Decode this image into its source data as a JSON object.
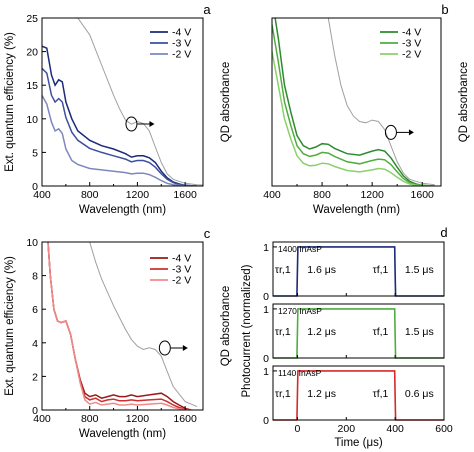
{
  "chart_data": [
    {
      "id": "a",
      "type": "line",
      "panel_label": "a",
      "xlabel": "Wavelength (nm)",
      "ylabel": "Ext. quantum efficiency (%)",
      "ylabel_right": "QD absorbance",
      "xlim": [
        400,
        1750
      ],
      "ylim": [
        0,
        25
      ],
      "xticks": [
        "400",
        "800",
        "1200",
        "1600"
      ],
      "yticks": [
        "0",
        "5",
        "10",
        "15",
        "20",
        "25"
      ],
      "legend": [
        "-4 V",
        "-3 V",
        "-2 V"
      ],
      "colors": [
        "#1b2a7a",
        "#3d4fa0",
        "#7d88bd"
      ],
      "absorbance_color": "#a0a0a0",
      "series": [
        {
          "name": "-4 V",
          "x": [
            400,
            440,
            480,
            510,
            540,
            570,
            600,
            650,
            700,
            800,
            900,
            1000,
            1100,
            1150,
            1200,
            1250,
            1300,
            1350,
            1400,
            1450,
            1500,
            1550,
            1600,
            1650,
            1700
          ],
          "y": [
            20.8,
            20.5,
            16.5,
            15,
            15.8,
            15.5,
            12.5,
            10,
            8.2,
            6.8,
            6,
            5.5,
            4.8,
            4.3,
            4.5,
            4.5,
            4.2,
            3.5,
            2.2,
            1.2,
            0.6,
            0.3,
            0.1,
            0.05,
            0
          ]
        },
        {
          "name": "-3 V",
          "x": [
            400,
            440,
            480,
            510,
            540,
            570,
            600,
            650,
            700,
            800,
            900,
            1000,
            1100,
            1150,
            1200,
            1250,
            1300,
            1350,
            1400,
            1450,
            1500,
            1550,
            1600,
            1650,
            1700
          ],
          "y": [
            17.5,
            16.8,
            13.5,
            12.5,
            13,
            12.5,
            10.2,
            8,
            6.8,
            5.6,
            5,
            4.5,
            4,
            3.6,
            3.8,
            3.8,
            3.5,
            2.8,
            1.8,
            1,
            0.5,
            0.2,
            0.08,
            0.03,
            0
          ]
        },
        {
          "name": "-2 V",
          "x": [
            400,
            440,
            480,
            510,
            540,
            570,
            600,
            650,
            700,
            800,
            900,
            1000,
            1100,
            1150,
            1200,
            1250,
            1300,
            1350,
            1400,
            1450,
            1500,
            1550,
            1600,
            1650,
            1700
          ],
          "y": [
            13.5,
            12.2,
            9.5,
            8.2,
            8.5,
            7.8,
            5.5,
            3.8,
            3.2,
            2.6,
            2.4,
            2.2,
            2,
            1.8,
            1.9,
            1.9,
            1.7,
            1.3,
            0.8,
            0.4,
            0.2,
            0.1,
            0.05,
            0.02,
            0
          ]
        },
        {
          "name": "QD absorbance",
          "x": [
            700,
            800,
            900,
            1000,
            1050,
            1100,
            1150,
            1200,
            1250,
            1300,
            1350,
            1400,
            1450,
            1500,
            1600,
            1700,
            1750
          ],
          "y": [
            25,
            22.5,
            18,
            13.5,
            11.5,
            9.8,
            9.2,
            9.6,
            9.3,
            8.2,
            5.8,
            3.5,
            1.8,
            1,
            0.4,
            0.2,
            0.15
          ]
        }
      ]
    },
    {
      "id": "b",
      "type": "line",
      "panel_label": "b",
      "xlabel": "Wavelength (nm)",
      "ylabel_right": "QD absorbance",
      "xlim": [
        400,
        1750
      ],
      "ylim": [
        0,
        25
      ],
      "xticks": [
        "400",
        "800",
        "1200",
        "1600"
      ],
      "legend": [
        "-4 V",
        "-3 V",
        "-2 V"
      ],
      "colors": [
        "#2e8a2e",
        "#4fad3f",
        "#8bd06a"
      ],
      "absorbance_color": "#a0a0a0",
      "series": [
        {
          "name": "-4 V",
          "x": [
            400,
            450,
            500,
            550,
            600,
            650,
            700,
            750,
            800,
            850,
            900,
            1000,
            1100,
            1200,
            1250,
            1300,
            1350,
            1400,
            1450,
            1500,
            1550,
            1600,
            1650,
            1700
          ],
          "y": [
            28,
            22,
            15,
            11,
            7.5,
            6,
            5.5,
            5.8,
            6.3,
            6.2,
            5.6,
            4.8,
            4.6,
            5.2,
            5.4,
            5.2,
            4.2,
            2.8,
            1.5,
            0.7,
            0.3,
            0.1,
            0.05,
            0
          ]
        },
        {
          "name": "-3 V",
          "x": [
            400,
            450,
            500,
            550,
            600,
            650,
            700,
            750,
            800,
            850,
            900,
            1000,
            1100,
            1200,
            1250,
            1300,
            1350,
            1400,
            1450,
            1500,
            1550,
            1600,
            1650,
            1700
          ],
          "y": [
            24,
            18.5,
            12.5,
            9,
            6,
            4.8,
            4.4,
            4.6,
            5,
            4.9,
            4.4,
            3.6,
            3.3,
            3.8,
            4,
            3.9,
            3.2,
            2.1,
            1.1,
            0.5,
            0.2,
            0.08,
            0.03,
            0
          ]
        },
        {
          "name": "-2 V",
          "x": [
            400,
            450,
            500,
            550,
            600,
            650,
            700,
            750,
            800,
            850,
            900,
            1000,
            1100,
            1200,
            1250,
            1300,
            1350,
            1400,
            1450,
            1500,
            1550,
            1600,
            1650,
            1700
          ],
          "y": [
            20,
            15,
            10,
            7,
            4.5,
            3.4,
            3,
            3.1,
            3.4,
            3.3,
            2.9,
            2.3,
            2.1,
            2.4,
            2.6,
            2.5,
            2,
            1.3,
            0.7,
            0.3,
            0.12,
            0.05,
            0.02,
            0
          ]
        },
        {
          "name": "QD absorbance",
          "x": [
            850,
            900,
            950,
            1000,
            1050,
            1100,
            1150,
            1200,
            1250,
            1300,
            1350,
            1400,
            1450,
            1500,
            1600,
            1700
          ],
          "y": [
            25,
            19.5,
            15,
            12,
            10.4,
            9.6,
            9.4,
            9.8,
            9.6,
            8.4,
            6,
            3.6,
            1.9,
            1,
            0.4,
            0.2
          ]
        }
      ]
    },
    {
      "id": "c",
      "type": "line",
      "panel_label": "c",
      "xlabel": "Wavelength (nm)",
      "ylabel": "Ext. quantum efficiency (%)",
      "ylabel_right": "QD absorbance",
      "xlim": [
        400,
        1750
      ],
      "ylim": [
        0,
        10
      ],
      "xticks": [
        "400",
        "800",
        "1200",
        "1600"
      ],
      "yticks": [
        "0",
        "2",
        "4",
        "6",
        "8",
        "10"
      ],
      "legend": [
        "-4 V",
        "-3 V",
        "-2 V"
      ],
      "colors": [
        "#9a1a1a",
        "#cc3030",
        "#f08a8a"
      ],
      "absorbance_color": "#a0a0a0",
      "series": [
        {
          "name": "-4 V",
          "x": [
            450,
            470,
            500,
            530,
            560,
            600,
            640,
            680,
            720,
            760,
            800,
            850,
            900,
            950,
            1000,
            1050,
            1100,
            1150,
            1200,
            1300,
            1400,
            1450,
            1500,
            1550,
            1600,
            1650
          ],
          "y": [
            10,
            8,
            6,
            5.3,
            5.2,
            5.3,
            4.5,
            3,
            1.8,
            1,
            0.8,
            0.9,
            0.7,
            0.8,
            0.9,
            0.8,
            0.8,
            0.9,
            0.8,
            0.9,
            1,
            0.8,
            0.5,
            0.3,
            0.1,
            0
          ]
        },
        {
          "name": "-3 V",
          "x": [
            450,
            470,
            500,
            530,
            560,
            600,
            640,
            680,
            720,
            760,
            800,
            850,
            900,
            950,
            1000,
            1050,
            1100,
            1150,
            1200,
            1300,
            1400,
            1450,
            1500,
            1550,
            1600,
            1650
          ],
          "y": [
            10,
            8,
            6,
            5.3,
            5.2,
            5.3,
            4.5,
            3,
            1.7,
            0.8,
            0.6,
            0.7,
            0.5,
            0.6,
            0.65,
            0.55,
            0.55,
            0.6,
            0.55,
            0.6,
            0.65,
            0.5,
            0.3,
            0.15,
            0.05,
            0
          ]
        },
        {
          "name": "-2 V",
          "x": [
            450,
            470,
            500,
            530,
            560,
            600,
            640,
            680,
            720,
            760,
            800,
            850,
            900,
            950,
            1000,
            1050,
            1100,
            1150,
            1200,
            1300,
            1400,
            1450,
            1500,
            1550,
            1600,
            1650
          ],
          "y": [
            10,
            8,
            6,
            5.3,
            5.2,
            5.3,
            4.5,
            3,
            1.6,
            0.6,
            0.35,
            0.45,
            0.3,
            0.35,
            0.4,
            0.3,
            0.3,
            0.35,
            0.3,
            0.35,
            0.4,
            0.3,
            0.15,
            0.07,
            0.02,
            0
          ]
        },
        {
          "name": "QD absorbance",
          "x": [
            800,
            850,
            900,
            950,
            1000,
            1050,
            1100,
            1150,
            1200,
            1250,
            1300,
            1350,
            1400,
            1450,
            1500,
            1600,
            1700
          ],
          "y": [
            10,
            8.8,
            7.8,
            7,
            6.2,
            5.5,
            4.8,
            4.2,
            3.8,
            3.6,
            3.7,
            3.6,
            3.2,
            2.3,
            1.4,
            0.5,
            0.2
          ]
        }
      ]
    },
    {
      "id": "d",
      "type": "line",
      "panel_label": "d",
      "xlabel": "Time (μs)",
      "ylabel": "Photocurrent (normalized)",
      "xlim": [
        -100,
        600
      ],
      "xticks": [
        "0",
        "200",
        "400",
        "600"
      ],
      "subpanels": [
        {
          "label": "1400 InAsP",
          "color": "#1b2a7a",
          "rise_label": "τr,1",
          "rise_value": "1.6 μs",
          "fall_label": "τf,1",
          "fall_value": "1.5 μs",
          "ylim": [
            0,
            1.1
          ],
          "yticks": [
            "0",
            "1"
          ],
          "x": [
            -100,
            -2,
            0,
            2,
            100,
            200,
            300,
            398,
            400,
            402,
            600
          ],
          "y": [
            0,
            0,
            0.5,
            1,
            1,
            1,
            1,
            1,
            0.5,
            0,
            0
          ]
        },
        {
          "label": "1270 InAsP",
          "color": "#4fad3f",
          "rise_label": "τr,1",
          "rise_value": "1.2 μs",
          "fall_label": "τf,1",
          "fall_value": "1.5 μs",
          "ylim": [
            0,
            1.1
          ],
          "yticks": [
            "0",
            "1"
          ],
          "x": [
            -100,
            -2,
            0,
            2,
            100,
            200,
            300,
            398,
            400,
            402,
            600
          ],
          "y": [
            0,
            0,
            0.5,
            1,
            1,
            1,
            1,
            1,
            0.5,
            0,
            0
          ]
        },
        {
          "label": "1140 InAsP",
          "color": "#d42a2a",
          "rise_label": "τr,1",
          "rise_value": "1.2 μs",
          "fall_label": "τf,1",
          "fall_value": "0.6 μs",
          "ylim": [
            0,
            1.1
          ],
          "yticks": [
            "0",
            "1"
          ],
          "x": [
            -100,
            -2,
            0,
            2,
            100,
            200,
            300,
            398,
            400,
            402,
            600
          ],
          "y": [
            0,
            0,
            0.5,
            1,
            1,
            1,
            1,
            1,
            0.5,
            0,
            0
          ]
        }
      ]
    }
  ]
}
